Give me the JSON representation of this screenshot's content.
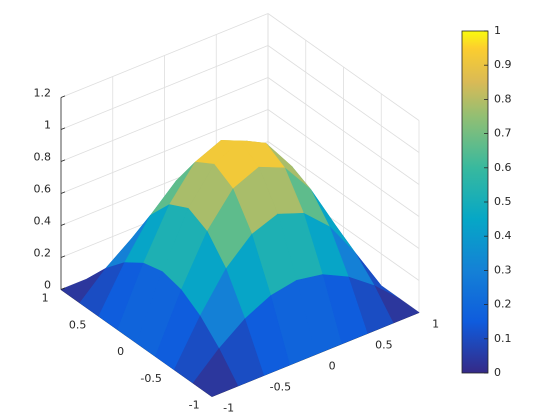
{
  "chart_data": {
    "type": "surface",
    "x": [
      -1,
      -0.75,
      -0.5,
      -0.25,
      0,
      0.25,
      0.5,
      0.75,
      1
    ],
    "y": [
      -1,
      -0.75,
      -0.5,
      -0.25,
      0,
      0.25,
      0.5,
      0.75,
      1
    ],
    "z": [
      [
        0,
        0,
        0,
        0,
        0,
        0,
        0,
        0,
        0
      ],
      [
        0,
        0.15,
        0.27,
        0.35,
        0.38,
        0.35,
        0.27,
        0.15,
        0
      ],
      [
        0,
        0.27,
        0.5,
        0.65,
        0.71,
        0.65,
        0.5,
        0.27,
        0
      ],
      [
        0,
        0.35,
        0.65,
        0.85,
        0.92,
        0.85,
        0.65,
        0.35,
        0
      ],
      [
        0,
        0.38,
        0.71,
        0.92,
        1,
        0.92,
        0.71,
        0.38,
        0
      ],
      [
        0,
        0.35,
        0.65,
        0.85,
        0.92,
        0.85,
        0.65,
        0.35,
        0
      ],
      [
        0,
        0.27,
        0.5,
        0.65,
        0.71,
        0.65,
        0.5,
        0.27,
        0
      ],
      [
        0,
        0.15,
        0.27,
        0.35,
        0.38,
        0.35,
        0.27,
        0.15,
        0
      ],
      [
        0,
        0,
        0,
        0,
        0,
        0,
        0,
        0,
        0
      ]
    ],
    "xlim": [
      -1,
      1
    ],
    "xticks": [
      -1,
      -0.5,
      0,
      0.5,
      1
    ],
    "ylim": [
      -1,
      1
    ],
    "yticks": [
      -1,
      -0.5,
      0,
      0.5,
      1
    ],
    "zlim": [
      0,
      1.2
    ],
    "zticks": [
      0,
      0.2,
      0.4,
      0.6,
      0.8,
      1,
      1.2
    ],
    "clim": [
      0,
      1
    ],
    "cticks": [
      0,
      0.1,
      0.2,
      0.3,
      0.4,
      0.5,
      0.6,
      0.7,
      0.8,
      0.9,
      1
    ],
    "colormap": "parula",
    "grid": true
  }
}
